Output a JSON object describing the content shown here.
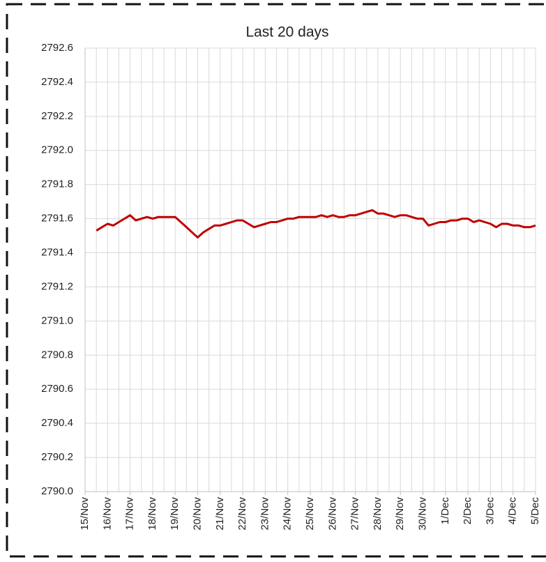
{
  "chart_data": {
    "type": "line",
    "title": "Last 20 days",
    "categories": [
      "15/Nov",
      null,
      null,
      null,
      "16/Nov",
      null,
      null,
      null,
      "17/Nov",
      null,
      null,
      null,
      "18/Nov",
      null,
      null,
      null,
      "19/Nov",
      null,
      null,
      null,
      "20/Nov",
      null,
      null,
      null,
      "21/Nov",
      null,
      null,
      null,
      "22/Nov",
      null,
      null,
      null,
      "23/Nov",
      null,
      null,
      null,
      "24/Nov",
      null,
      null,
      null,
      "25/Nov",
      null,
      null,
      null,
      "26/Nov",
      null,
      null,
      null,
      "27/Nov",
      null,
      null,
      null,
      "28/Nov",
      null,
      null,
      null,
      "29/Nov",
      null,
      null,
      null,
      "30/Nov",
      null,
      null,
      null,
      "1/Dec",
      null,
      null,
      null,
      "2/Dec",
      null,
      null,
      null,
      "3/Dec",
      null,
      null,
      null,
      "4/Dec",
      null,
      null,
      null,
      "5/Dec"
    ],
    "values": [
      null,
      null,
      2791.53,
      2791.55,
      2791.57,
      2791.56,
      2791.58,
      2791.6,
      2791.62,
      2791.59,
      2791.6,
      2791.61,
      2791.6,
      2791.61,
      2791.61,
      2791.61,
      2791.61,
      2791.58,
      2791.55,
      2791.52,
      2791.49,
      2791.52,
      2791.54,
      2791.56,
      2791.56,
      2791.57,
      2791.58,
      2791.59,
      2791.59,
      2791.57,
      2791.55,
      2791.56,
      2791.57,
      2791.58,
      2791.58,
      2791.59,
      2791.6,
      2791.6,
      2791.61,
      2791.61,
      2791.61,
      2791.61,
      2791.62,
      2791.61,
      2791.62,
      2791.61,
      2791.61,
      2791.62,
      2791.62,
      2791.63,
      2791.64,
      2791.65,
      2791.63,
      2791.63,
      2791.62,
      2791.61,
      2791.62,
      2791.62,
      2791.61,
      2791.6,
      2791.6,
      2791.56,
      2791.57,
      2791.58,
      2791.58,
      2791.59,
      2791.59,
      2791.6,
      2791.6,
      2791.58,
      2791.59,
      2791.58,
      2791.57,
      2791.55,
      2791.57,
      2791.57,
      2791.56,
      2791.56,
      2791.55,
      2791.55,
      2791.56
    ],
    "color": "#c00000",
    "ylim": [
      2790.0,
      2792.6
    ],
    "yticks": [
      {
        "value": 2790.0,
        "label": "2790.0"
      },
      2790.2,
      2790.4,
      2790.6,
      2790.8,
      {
        "value": 2791.0,
        "label": "2791.0"
      },
      2791.2,
      2791.4,
      2791.6,
      2791.8,
      {
        "value": 2792.0,
        "label": "2792.0"
      },
      2792.2,
      2792.4,
      2792.6
    ],
    "grid": true
  }
}
